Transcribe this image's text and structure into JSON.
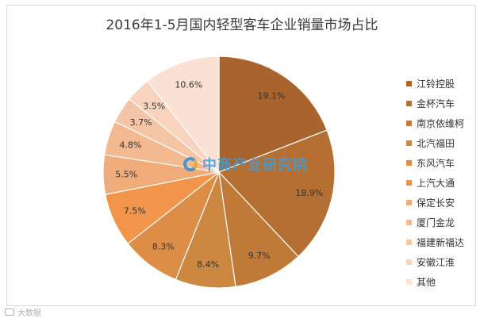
{
  "chart_data": {
    "type": "pie",
    "title": "2016年1-5月国内轻型客车企业销量市场占比",
    "legend_position": "right",
    "slices": [
      {
        "name": "江铃控股",
        "value": 19.1,
        "label": "19.1%",
        "color": "#a8642c"
      },
      {
        "name": "金杯汽车",
        "value": 18.9,
        "label": "18.9%",
        "color": "#b66f32"
      },
      {
        "name": "南京依维柯",
        "value": 9.7,
        "label": "9.7%",
        "color": "#c07a38"
      },
      {
        "name": "北汽福田",
        "value": 8.4,
        "label": "8.4%",
        "color": "#cc8740"
      },
      {
        "name": "东风汽车",
        "value": 8.3,
        "label": "8.3%",
        "color": "#dc8e46"
      },
      {
        "name": "上汽大通",
        "value": 7.5,
        "label": "7.5%",
        "color": "#f2954a"
      },
      {
        "name": "保定长安",
        "value": 5.5,
        "label": "5.5%",
        "color": "#f0ab7a"
      },
      {
        "name": "厦门金龙",
        "value": 4.8,
        "label": "4.8%",
        "color": "#f3b990"
      },
      {
        "name": "福建新福达",
        "value": 3.7,
        "label": "3.7%",
        "color": "#f5c6a6"
      },
      {
        "name": "安徽江淮",
        "value": 3.5,
        "label": "3.5%",
        "color": "#f8d4be"
      },
      {
        "name": "其他",
        "value": 10.6,
        "label": "10.6%",
        "color": "#fbe1d3"
      }
    ]
  },
  "watermark": {
    "text": "中商产业研究院"
  },
  "footer": {
    "text": "大数据"
  }
}
